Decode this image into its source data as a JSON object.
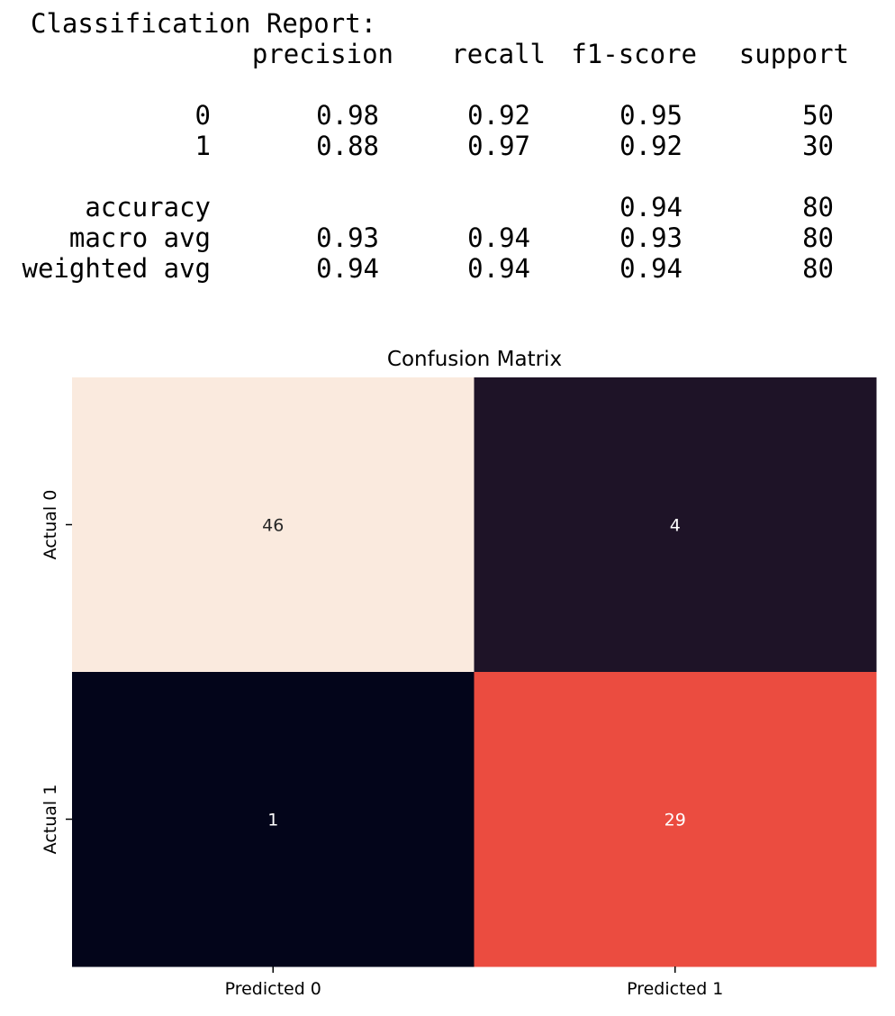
{
  "report": {
    "heading": "Classification Report:",
    "columns": [
      "precision",
      "recall",
      "f1-score",
      "support"
    ],
    "class_rows": [
      {
        "label": "0",
        "values": [
          "0.98",
          "0.92",
          "0.95",
          "50"
        ]
      },
      {
        "label": "1",
        "values": [
          "0.88",
          "0.97",
          "0.92",
          "30"
        ]
      }
    ],
    "summary_rows": [
      {
        "label": "accuracy",
        "values": [
          "",
          "",
          "0.94",
          "80"
        ]
      },
      {
        "label": "macro avg",
        "values": [
          "0.93",
          "0.94",
          "0.93",
          "80"
        ]
      },
      {
        "label": "weighted avg",
        "values": [
          "0.94",
          "0.94",
          "0.94",
          "80"
        ]
      }
    ]
  },
  "chart_data": {
    "type": "heatmap",
    "title": "Confusion Matrix",
    "xlabel": "",
    "ylabel": "",
    "x_categories": [
      "Predicted 0",
      "Predicted 1"
    ],
    "y_categories": [
      "Actual 0",
      "Actual 1"
    ],
    "values": [
      [
        46,
        4
      ],
      [
        1,
        29
      ]
    ],
    "colorbar": false,
    "cell_colors": [
      [
        "#faeade",
        "#1e1327"
      ],
      [
        "#03051a",
        "#eb4c40"
      ]
    ],
    "annotation_colors": [
      [
        "#262626",
        "#ffffff"
      ],
      [
        "#ffffff",
        "#ffffff"
      ]
    ]
  }
}
